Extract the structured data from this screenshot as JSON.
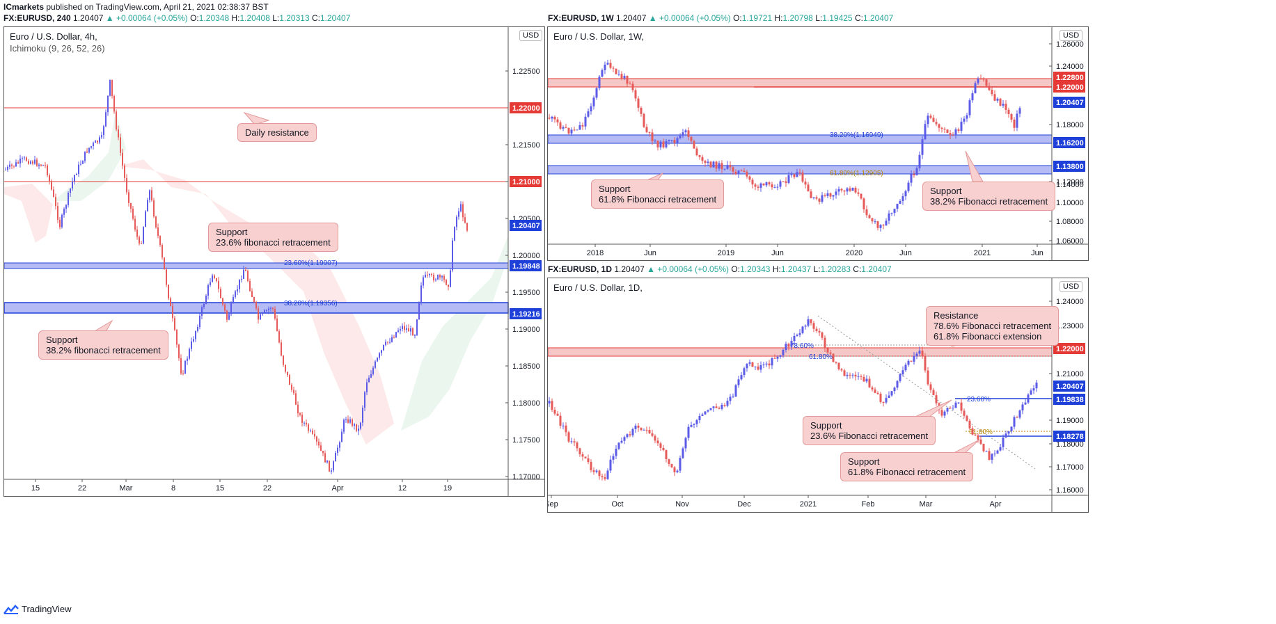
{
  "header": {
    "author": "ICmarkets",
    "published": "published on TradingView.com, April 21, 2021 02:38:37 BST"
  },
  "footer": {
    "brand": "TradingView"
  },
  "colors": {
    "up": "#5b5be8",
    "down": "#e65a5a",
    "resistance": "#e53935",
    "support": "#1e3fd8"
  },
  "panels": {
    "left": {
      "ohlc": {
        "symbol": "FX:EURUSD, 240",
        "last": "1.20407",
        "change": "▲ +0.00064 (+0.05%)",
        "o_label": "O:",
        "o": "1.20348",
        "h_label": "H:",
        "h": "1.20408",
        "l_label": "L:",
        "l": "1.20313",
        "c_label": "C:",
        "c": "1.20407"
      },
      "title": "Euro / U.S. Dollar, 4h,",
      "indicator": "Ichimoku (9, 26, 52, 26)",
      "currency": "USD",
      "price_ticks": [
        "1.22500",
        "1.21500",
        "1.21000",
        "1.20500",
        "1.20000",
        "1.19500",
        "1.19000",
        "1.18500",
        "1.18000",
        "1.17500",
        "1.17000"
      ],
      "date_ticks": [
        "15",
        "22",
        "Mar",
        "8",
        "15",
        "22",
        "Apr",
        "12",
        "19"
      ],
      "price_tags": [
        {
          "label": "1.22000",
          "kind": "res"
        },
        {
          "label": "1.21000",
          "kind": "res"
        },
        {
          "label": "1.20407",
          "kind": "last"
        },
        {
          "label": "1.19848",
          "kind": "sup"
        },
        {
          "label": "1.19216",
          "kind": "sup"
        }
      ],
      "fib_labels": [
        "23.60%(1.19907)",
        "38.20%(1.19356)"
      ],
      "notes": [
        "Daily resistance",
        "Support\n23.6% fibonacci retracement",
        "Support\n38.2% fibonacci retracement"
      ]
    },
    "top_right": {
      "ohlc": {
        "symbol": "FX:EURUSD, 1W",
        "last": "1.20407",
        "change": "▲ +0.00064 (+0.05%)",
        "o_label": "O:",
        "o": "1.19721",
        "h_label": "H:",
        "h": "1.20798",
        "l_label": "L:",
        "l": "1.19425",
        "c_label": "C:",
        "c": "1.20407"
      },
      "title": "Euro / U.S. Dollar, 1W,",
      "currency": "USD",
      "price_ticks": [
        "1.26000",
        "1.24000",
        "1.18000",
        "1.14000",
        "1.12000",
        "1.10000",
        "1.08000",
        "1.06000"
      ],
      "date_ticks": [
        "2018",
        "Jun",
        "2019",
        "Jun",
        "2020",
        "Jun",
        "2021",
        "Jun"
      ],
      "price_tags": [
        {
          "label": "1.22800",
          "kind": "res"
        },
        {
          "label": "1.22000",
          "kind": "res"
        },
        {
          "label": "1.20407",
          "kind": "last"
        },
        {
          "label": "1.16200",
          "kind": "sup"
        },
        {
          "label": "1.13800",
          "kind": "sup"
        }
      ],
      "fib_labels": [
        "38.20%(1.16949)",
        "61.80%(1.12905)"
      ],
      "notes": [
        "Support\n61.8% Fibonacci retracement",
        "Support\n38.2% Fibonacci retracement"
      ]
    },
    "bottom_right": {
      "ohlc": {
        "symbol": "FX:EURUSD, 1D",
        "last": "1.20407",
        "change": "▲ +0.00064 (+0.05%)",
        "o_label": "O:",
        "o": "1.20343",
        "h_label": "H:",
        "h": "1.20437",
        "l_label": "L:",
        "l": "1.20283",
        "c_label": "C:",
        "c": "1.20407"
      },
      "title": "Euro / U.S. Dollar, 1D,",
      "currency": "USD",
      "price_ticks": [
        "1.24000",
        "1.23000",
        "1.21000",
        "1.19000",
        "1.18000",
        "1.17000",
        "1.16000"
      ],
      "date_ticks": [
        "Sep",
        "Oct",
        "Nov",
        "Dec",
        "2021",
        "Feb",
        "Mar",
        "Apr"
      ],
      "price_tags": [
        {
          "label": "1.22000",
          "kind": "res"
        },
        {
          "label": "1.20407",
          "kind": "last"
        },
        {
          "label": "1.19838",
          "kind": "sup"
        },
        {
          "label": "1.18278",
          "kind": "sup"
        }
      ],
      "fib_labels": [
        "78.60%",
        "61.80%",
        "23.60%",
        "61.80%"
      ],
      "notes": [
        "Resistance\n78.6% Fibonacci retracement\n61.8% Fibonacci extension",
        "Support\n23.6% Fibonacci retracement",
        "Support\n61.8% Fibonacci retracement"
      ]
    }
  }
}
